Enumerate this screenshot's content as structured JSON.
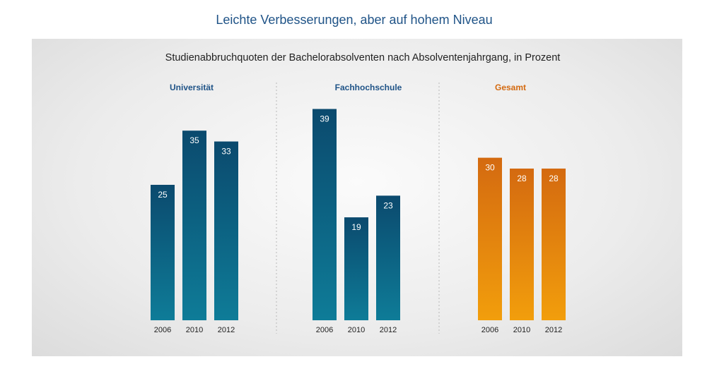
{
  "headline": "Leichte Verbesserungen, aber auf hohem Niveau",
  "colors": {
    "blue_top": "#0b4a6e",
    "blue_bottom": "#0e7c98",
    "orange_top": "#d46a10",
    "orange_bottom": "#f29e0c",
    "label_blue": "#1f5387",
    "label_orange": "#d46a10"
  },
  "chart_data": {
    "type": "bar",
    "title": "Studienabbruchquoten der Bachelorabsolventen nach Absolventenjahrgang, in Prozent",
    "categories": [
      "2006",
      "2010",
      "2012"
    ],
    "series": [
      {
        "name": "Universität",
        "values": [
          25,
          35,
          33
        ],
        "color": "blue"
      },
      {
        "name": "Fachhochschule",
        "values": [
          39,
          19,
          23
        ],
        "color": "blue"
      },
      {
        "name": "Gesamt",
        "values": [
          30,
          28,
          28
        ],
        "color": "orange"
      }
    ],
    "ylim": [
      0,
      40
    ],
    "grid": false,
    "legend": "none"
  }
}
